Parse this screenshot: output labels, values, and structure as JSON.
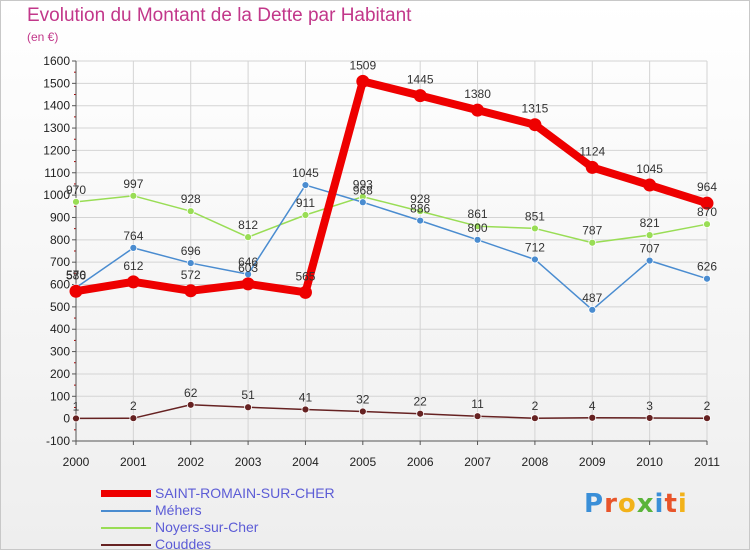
{
  "title": "Evolution du Montant de la Dette par Habitant",
  "subtitle": "(en €)",
  "logo": {
    "text": "Proxiti",
    "colors": [
      "#3a8fd8",
      "#e8542a",
      "#f2b21a",
      "#5ab43a",
      "#3a8fd8",
      "#e8542a",
      "#f2b21a"
    ]
  },
  "chart_data": {
    "type": "line",
    "x": [
      "2000",
      "2001",
      "2002",
      "2003",
      "2004",
      "2005",
      "2006",
      "2007",
      "2008",
      "2009",
      "2010",
      "2011"
    ],
    "ylim": [
      -100,
      1600
    ],
    "yticks": [
      "-100",
      "0",
      "100",
      "200",
      "300",
      "400",
      "500",
      "600",
      "700",
      "800",
      "900",
      "1000",
      "1100",
      "1200",
      "1300",
      "1400",
      "1500",
      "1600"
    ],
    "grid": true,
    "legend_position": "bottom",
    "series": [
      {
        "name": "SAINT-ROMAIN-SUR-CHER",
        "color": "#ee0000",
        "values": [
          570,
          612,
          572,
          603,
          565,
          1509,
          1445,
          1380,
          1315,
          1124,
          1045,
          964
        ],
        "labels": [
          "570",
          "612",
          "572",
          "603",
          "565",
          "1509",
          "1445",
          "1380",
          "1315",
          "1124",
          "1045",
          "964"
        ]
      },
      {
        "name": "Méhers",
        "color": "#4a8cd0",
        "values": [
          586,
          764,
          696,
          646,
          1045,
          968,
          886,
          800,
          712,
          487,
          707,
          626
        ],
        "labels": [
          "586",
          "764",
          "696",
          "646",
          "1045",
          "968",
          "886",
          "800",
          "712",
          "487",
          "707",
          "626"
        ]
      },
      {
        "name": "Noyers-sur-Cher",
        "color": "#99dd55",
        "values": [
          970,
          997,
          928,
          812,
          911,
          993,
          928,
          861,
          851,
          787,
          821,
          870
        ],
        "labels": [
          "970",
          "997",
          "928",
          "812",
          "911",
          "993",
          "928",
          "861",
          "851",
          "787",
          "821",
          "870"
        ]
      },
      {
        "name": "Couddes",
        "color": "#662222",
        "values": [
          1,
          2,
          62,
          51,
          41,
          32,
          22,
          11,
          2,
          4,
          3,
          2
        ],
        "labels": [
          "1",
          "2",
          "62",
          "51",
          "41",
          "32",
          "22",
          "11",
          "2",
          "4",
          "3",
          "2"
        ]
      }
    ]
  }
}
